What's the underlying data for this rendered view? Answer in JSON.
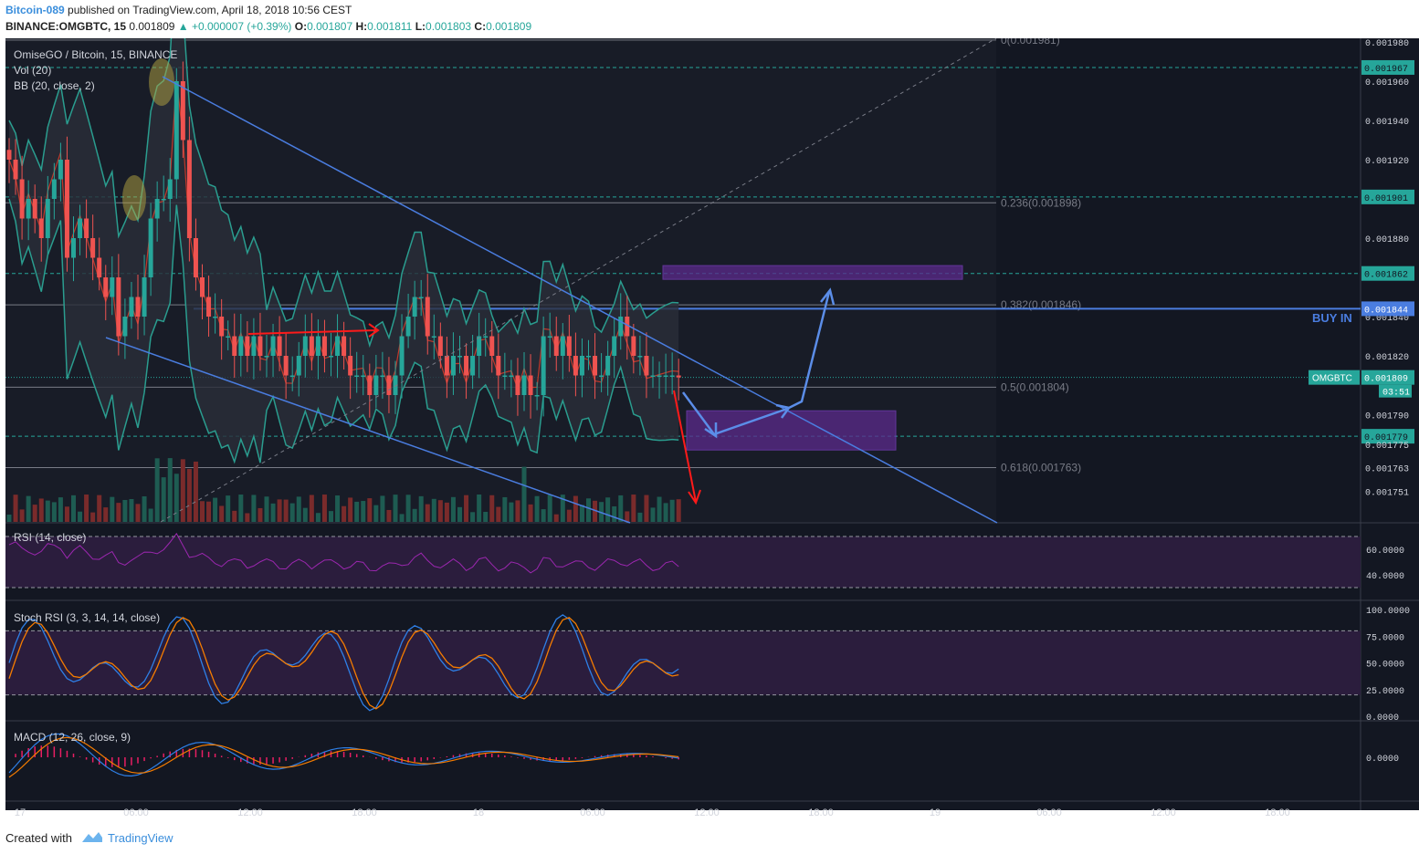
{
  "header": {
    "author": "Bitcoin-089",
    "published": " published on TradingView.com, April 18, 2018 10:56 CEST",
    "symbol_line_prefix": "BINANCE:OMGBTC, 15",
    "last": "0.001809",
    "change": "▲ +0.000007 (+0.39%)",
    "o_label": "O:",
    "o": "0.001807",
    "h_label": "H:",
    "h": "0.001811",
    "l_label": "L:",
    "l": "0.001803",
    "c_label": "C:",
    "c": "0.001809"
  },
  "footer": {
    "created": "Created with",
    "brand": "TradingView"
  },
  "colors": {
    "bg": "#131722",
    "up": "#26a69a",
    "down": "#ef5350",
    "bb_band": "#2a9d8f",
    "bb_basis": "#c0392b",
    "trend": "#4a7de0",
    "purple_zone": "#5b2a8c",
    "rsi": "#9c27b0",
    "stoch_k": "#2e7fe6",
    "stoch_d": "#f57c00",
    "macd": "#2e7fe6",
    "signal": "#f57c00",
    "hist": "#e91e63"
  },
  "chart_data": {
    "type": "candlestick",
    "title": "OmiseGO / Bitcoin, 15, BINANCE",
    "indicators": [
      "Vol (20)",
      "BB (20, close, 2)"
    ],
    "price_axis": {
      "range": [
        0.00174,
        0.00199
      ],
      "ticks": [
        "0.001980",
        "0.001960",
        "0.001940",
        "0.001920",
        "0.001880",
        "0.001840",
        "0.001820",
        "0.001790",
        "0.001775",
        "0.001763",
        "0.001751"
      ],
      "tick_values": [
        0.00198,
        0.00196,
        0.00194,
        0.00192,
        0.00188,
        0.00184,
        0.00182,
        0.00179,
        0.001775,
        0.001763,
        0.001751
      ]
    },
    "horizontal_levels": [
      {
        "label": "0.001967",
        "value": 0.001967
      },
      {
        "label": "0.001901",
        "value": 0.001901
      },
      {
        "label": "0.001862",
        "value": 0.001862
      },
      {
        "label": "0.001779",
        "value": 0.001779
      }
    ],
    "buy_in": {
      "label": "BUY IN",
      "price_label": "0.001844",
      "value": 0.001844
    },
    "current": {
      "symbol": "OMGBTC",
      "price_label": "0.001809",
      "value": 0.001809,
      "countdown": "03:51"
    },
    "fib_levels": [
      {
        "label": "0(0.001981)",
        "value": 0.001981
      },
      {
        "label": "0.236(0.001898)",
        "value": 0.001898
      },
      {
        "label": "0.382(0.001846)",
        "value": 0.001846
      },
      {
        "label": "0.5(0.001804)",
        "value": 0.001804
      },
      {
        "label": "0.618(0.001763)",
        "value": 0.001763
      }
    ],
    "closes": [
      0.00192,
      0.00191,
      0.00189,
      0.0019,
      0.00189,
      0.00188,
      0.0019,
      0.00191,
      0.00192,
      0.00187,
      0.00188,
      0.00189,
      0.00188,
      0.00187,
      0.00186,
      0.00185,
      0.00186,
      0.00183,
      0.00184,
      0.00185,
      0.00184,
      0.00186,
      0.00189,
      0.0019,
      0.0019,
      0.00191,
      0.00196,
      0.00193,
      0.00188,
      0.00186,
      0.00185,
      0.00184,
      0.00184,
      0.00183,
      0.00183,
      0.00182,
      0.00183,
      0.00182,
      0.00183,
      0.00182,
      0.00182,
      0.00183,
      0.00182,
      0.00181,
      0.00181,
      0.00182,
      0.00183,
      0.00182,
      0.00183,
      0.00182,
      0.00182,
      0.00183,
      0.00182,
      0.00181,
      0.00181,
      0.00181,
      0.0018,
      0.00181,
      0.00181,
      0.0018,
      0.00181,
      0.00183,
      0.00184,
      0.00185,
      0.00185,
      0.00183,
      0.00183,
      0.00182,
      0.00181,
      0.00182,
      0.00182,
      0.00181,
      0.00182,
      0.00183,
      0.00183,
      0.00182,
      0.00181,
      0.00181,
      0.00181,
      0.0018,
      0.00181,
      0.0018,
      0.0018,
      0.00183,
      0.00183,
      0.00182,
      0.00183,
      0.00182,
      0.00181,
      0.00182,
      0.00182,
      0.00181,
      0.00181,
      0.00182,
      0.00183,
      0.00184,
      0.00183,
      0.00182,
      0.00182,
      0.00181,
      0.00181,
      0.00181,
      0.00181,
      0.00181,
      0.001809
    ],
    "projection_paths": {
      "red": [
        "main-move-down"
      ],
      "blue": [
        "dip-then-breakout-up"
      ]
    },
    "rsi": {
      "label": "RSI (14, close)",
      "ticks": [
        "60.0000",
        "40.0000"
      ],
      "bounds": [
        70,
        30
      ],
      "range": [
        20,
        80
      ]
    },
    "stoch_rsi": {
      "label": "Stoch RSI (3, 3, 14, 14, close)",
      "ticks": [
        "100.0000",
        "75.0000",
        "50.0000",
        "25.0000",
        "0.0000"
      ],
      "bounds": [
        80,
        20
      ],
      "range": [
        0,
        100
      ]
    },
    "macd": {
      "label": "MACD (12, 26, close, 9)",
      "ticks": [
        "0.0000"
      ]
    },
    "time_axis": [
      "17",
      "06:00",
      "12:00",
      "18:00",
      "18",
      "06:00",
      "12:00",
      "18:00",
      "19",
      "06:00",
      "12:00",
      "18:00"
    ]
  }
}
